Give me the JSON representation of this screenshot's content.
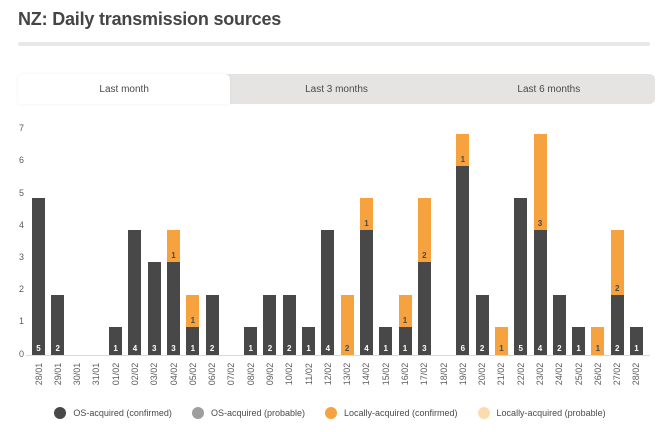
{
  "header": {
    "title": "NZ: Daily transmission sources"
  },
  "tabs": [
    {
      "id": "last-month",
      "label": "Last month",
      "active": true
    },
    {
      "id": "last-3-months",
      "label": "Last 3 months",
      "active": false
    },
    {
      "id": "last-6-months",
      "label": "Last 6 months",
      "active": false
    }
  ],
  "colors": {
    "os_confirmed": "#484848",
    "os_probable": "#9e9e9e",
    "local_confirmed": "#f6a23e",
    "local_probable": "#fbdcb0",
    "axis_line": "#d9d9d9",
    "tab_bg": "#e5e4e2",
    "divider": "#e9e8e6"
  },
  "chart_data": {
    "type": "bar",
    "stacked": true,
    "title": "NZ: Daily transmission sources",
    "xlabel": "",
    "ylabel": "",
    "ylim": [
      0,
      7
    ],
    "yticks": [
      0,
      1,
      2,
      3,
      4,
      5,
      6,
      7
    ],
    "grid": false,
    "legend_position": "bottom",
    "categories": [
      "28/01",
      "29/01",
      "30/01",
      "31/01",
      "01/02",
      "02/02",
      "03/02",
      "04/02",
      "05/02",
      "06/02",
      "07/02",
      "08/02",
      "09/02",
      "10/02",
      "11/02",
      "12/02",
      "13/02",
      "14/02",
      "15/02",
      "16/02",
      "17/02",
      "18/02",
      "19/02",
      "20/02",
      "21/02",
      "22/02",
      "23/02",
      "24/02",
      "25/02",
      "26/02",
      "27/02",
      "28/02"
    ],
    "series": [
      {
        "name": "OS-acquired (confirmed)",
        "color": "#484848",
        "label_color": "#ffffff",
        "values": [
          5,
          2,
          0,
          0,
          1,
          4,
          3,
          3,
          1,
          2,
          0,
          1,
          2,
          2,
          1,
          4,
          0,
          4,
          1,
          1,
          3,
          0,
          6,
          2,
          0,
          5,
          4,
          2,
          1,
          0,
          2,
          1
        ]
      },
      {
        "name": "OS-acquired (probable)",
        "color": "#9e9e9e",
        "label_color": "#ffffff",
        "values": [
          0,
          0,
          0,
          0,
          0,
          0,
          0,
          0,
          0,
          0,
          0,
          0,
          0,
          0,
          0,
          0,
          0,
          0,
          0,
          0,
          0,
          0,
          0,
          0,
          0,
          0,
          0,
          0,
          0,
          0,
          0,
          0
        ]
      },
      {
        "name": "Locally-acquired (confirmed)",
        "color": "#f6a23e",
        "label_color": "#4a4a4a",
        "values": [
          0,
          0,
          0,
          0,
          0,
          0,
          0,
          1,
          1,
          0,
          0,
          0,
          0,
          0,
          0,
          0,
          2,
          1,
          0,
          1,
          2,
          0,
          1,
          0,
          1,
          0,
          3,
          0,
          0,
          1,
          2,
          0
        ]
      },
      {
        "name": "Locally-acquired (probable)",
        "color": "#fbdcb0",
        "label_color": "#4a4a4a",
        "values": [
          0,
          0,
          0,
          0,
          0,
          0,
          0,
          0,
          0,
          0,
          0,
          0,
          0,
          0,
          0,
          0,
          0,
          0,
          0,
          0,
          0,
          0,
          0,
          0,
          0,
          0,
          0,
          0,
          0,
          0,
          0,
          0
        ]
      }
    ]
  },
  "legend": {
    "items": [
      {
        "label": "OS-acquired (confirmed)",
        "color": "#484848"
      },
      {
        "label": "OS-acquired (probable)",
        "color": "#9e9e9e"
      },
      {
        "label": "Locally-acquired (confirmed)",
        "color": "#f6a23e"
      },
      {
        "label": "Locally-acquired (probable)",
        "color": "#fbdcb0"
      }
    ]
  }
}
